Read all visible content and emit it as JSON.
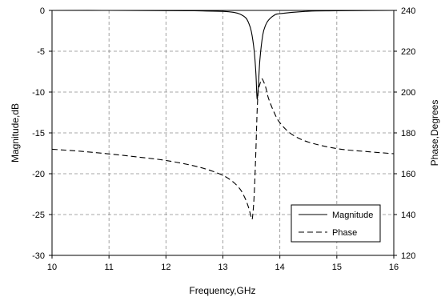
{
  "chart_data": {
    "type": "line",
    "title": "",
    "xlabel": "Frequency,GHz",
    "ylabel_left": "Magnitude,dB",
    "ylabel_right": "Phase,Degrees",
    "xlim": [
      10,
      16
    ],
    "ylim_left": [
      -30,
      0
    ],
    "ylim_right": [
      120,
      240
    ],
    "x_ticks": [
      10,
      11,
      12,
      13,
      14,
      15,
      16
    ],
    "y_left_ticks": [
      0,
      -5,
      -10,
      -15,
      -20,
      -25,
      -30
    ],
    "y_right_ticks": [
      240,
      220,
      200,
      180,
      160,
      140,
      120
    ],
    "grid": "dashed",
    "legend_position": "bottom-right",
    "series": [
      {
        "name": "Magnitude",
        "axis": "left",
        "line_style": "solid",
        "x": [
          10.0,
          11.0,
          12.0,
          12.5,
          13.0,
          13.2,
          13.3,
          13.4,
          13.45,
          13.5,
          13.55,
          13.58,
          13.6,
          13.62,
          13.65,
          13.7,
          13.75,
          13.8,
          13.9,
          14.0,
          14.5,
          15.0,
          16.0
        ],
        "y": [
          0.0,
          0.0,
          -0.03,
          -0.05,
          -0.12,
          -0.25,
          -0.45,
          -0.9,
          -1.5,
          -2.6,
          -5.0,
          -7.8,
          -10.8,
          -9.5,
          -6.0,
          -3.0,
          -1.8,
          -1.2,
          -0.6,
          -0.4,
          -0.1,
          -0.05,
          0.0
        ]
      },
      {
        "name": "Phase",
        "axis": "right",
        "line_style": "dashed",
        "x": [
          10.0,
          10.5,
          11.0,
          11.5,
          12.0,
          12.5,
          12.8,
          13.0,
          13.1,
          13.2,
          13.3,
          13.35,
          13.4,
          13.45,
          13.5,
          13.52,
          13.55,
          13.58,
          13.6,
          13.62,
          13.65,
          13.68,
          13.7,
          13.75,
          13.8,
          13.9,
          14.0,
          14.2,
          14.5,
          15.0,
          15.5,
          16.0
        ],
        "y": [
          172.0,
          171.0,
          169.7,
          168.2,
          166.5,
          163.8,
          161.4,
          159.2,
          157.6,
          155.5,
          152.5,
          150.2,
          147.3,
          143.5,
          138.5,
          138.7,
          150.0,
          172.0,
          190.0,
          200.0,
          204.0,
          206.2,
          206.0,
          202.5,
          197.0,
          190.0,
          185.0,
          179.5,
          175.5,
          172.3,
          170.9,
          169.8
        ]
      }
    ]
  }
}
